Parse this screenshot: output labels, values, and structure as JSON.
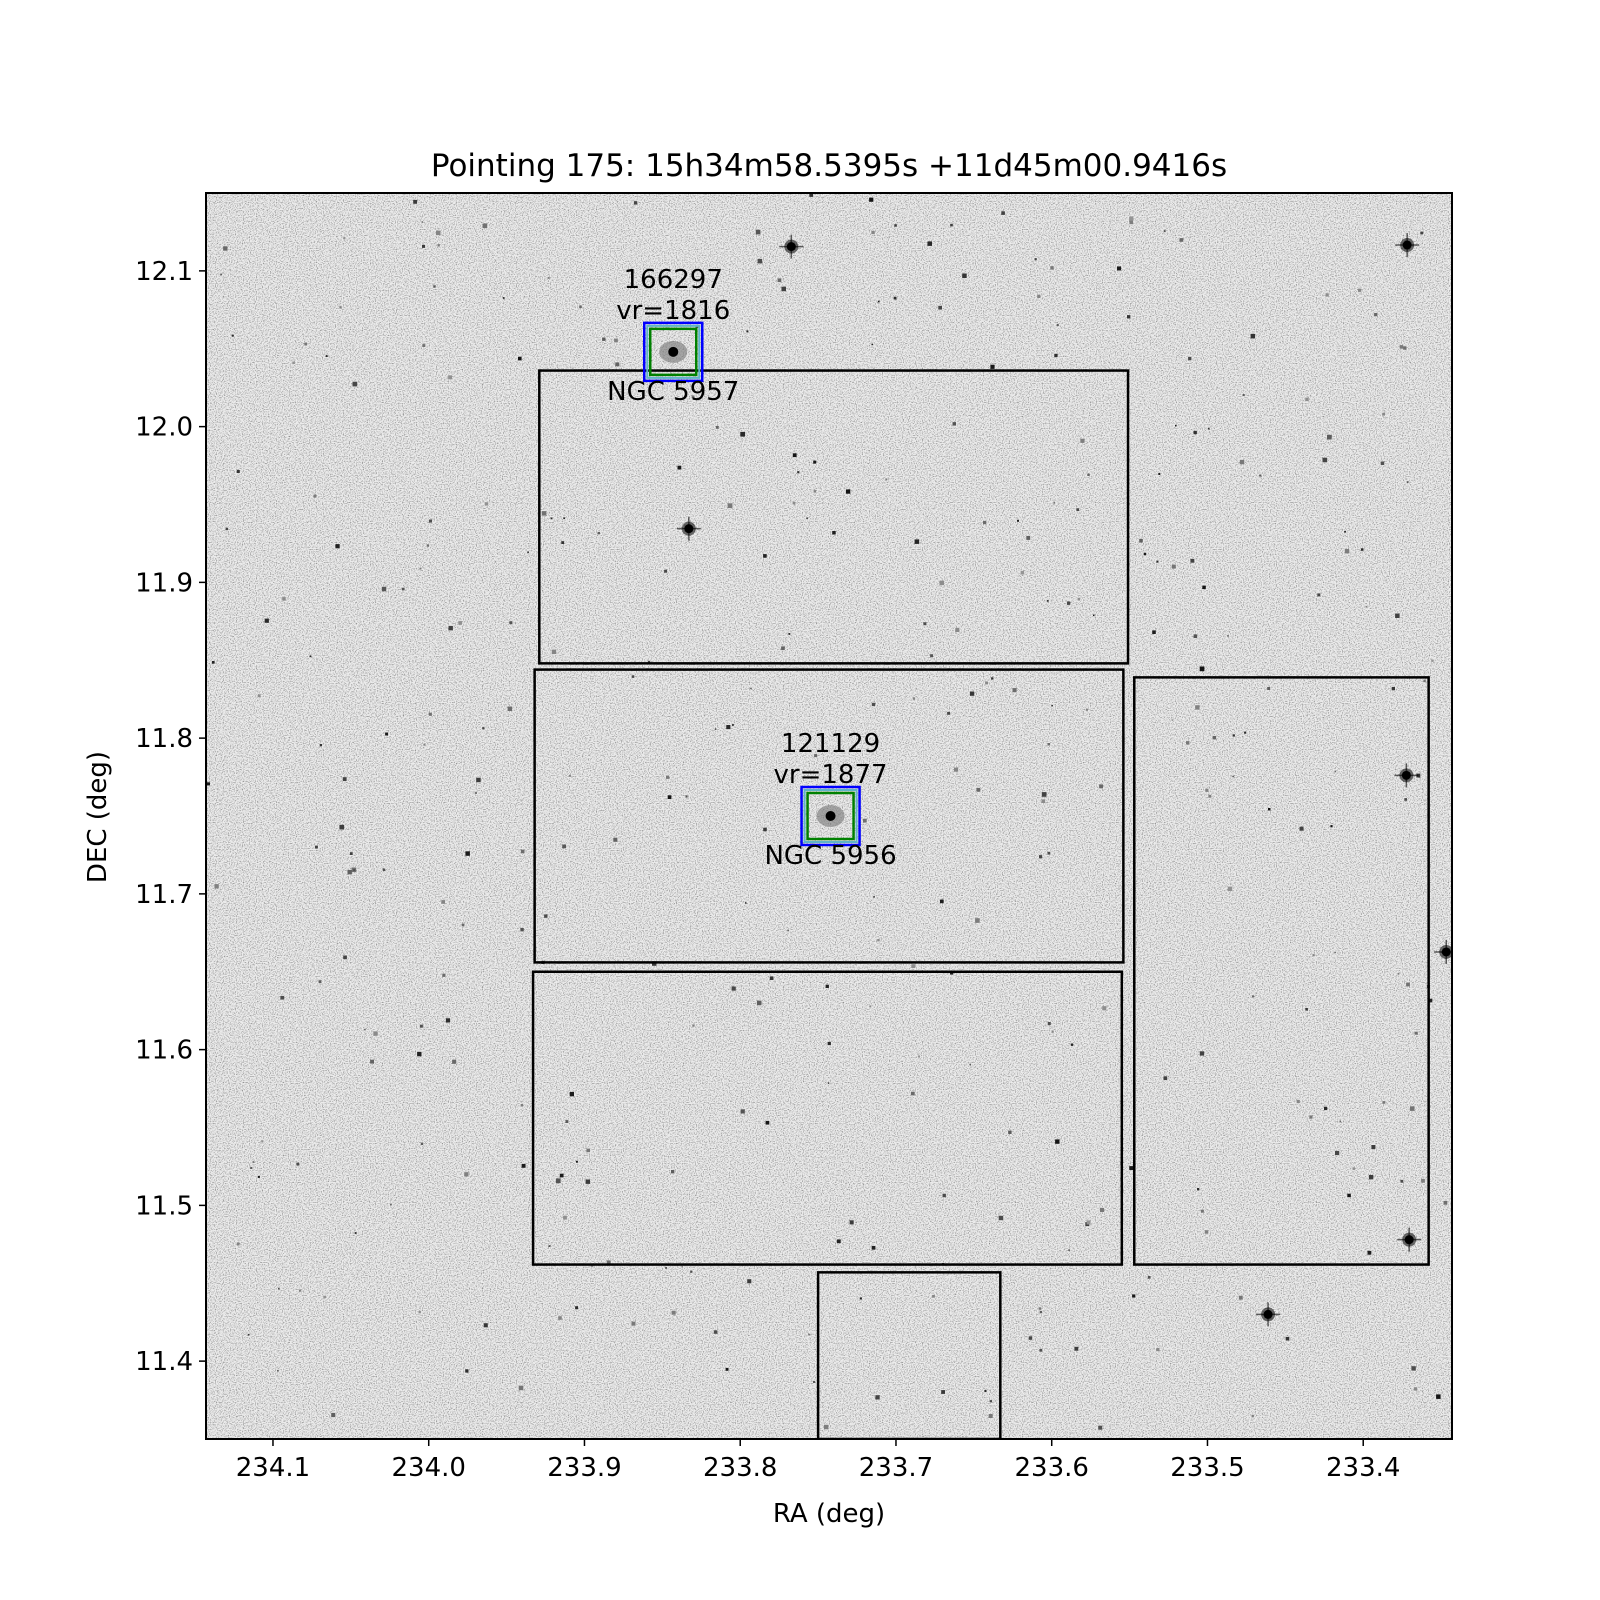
{
  "chart_data": {
    "type": "scatter",
    "title": "Pointing 175: 15h34m58.5395s +11d45m00.9416s",
    "xlabel": "RA (deg)",
    "ylabel": "DEC (deg)",
    "xlim": [
      234.143,
      233.343
    ],
    "ylim": [
      11.35,
      12.15
    ],
    "x_ticks": [
      234.1,
      234.0,
      233.9,
      233.8,
      233.7,
      233.6,
      233.5,
      233.4
    ],
    "x_tick_labels": [
      "234.1",
      "234.0",
      "233.9",
      "233.8",
      "233.7",
      "233.6",
      "233.5",
      "233.4"
    ],
    "y_ticks": [
      11.4,
      11.5,
      11.6,
      11.7,
      11.8,
      11.9,
      12.0,
      12.1
    ],
    "y_tick_labels": [
      "11.4",
      "11.5",
      "11.6",
      "11.7",
      "11.8",
      "11.9",
      "12.0",
      "12.1"
    ],
    "background": "grayscale sky image with stars",
    "footprints": [
      {
        "ra": [
          233.929,
          233.551
        ],
        "dec": [
          11.848,
          12.036
        ]
      },
      {
        "ra": [
          233.932,
          233.554
        ],
        "dec": [
          11.656,
          11.844
        ]
      },
      {
        "ra": [
          233.933,
          233.555
        ],
        "dec": [
          11.462,
          11.65
        ]
      },
      {
        "ra": [
          233.547,
          233.358
        ],
        "dec": [
          11.462,
          11.839
        ]
      },
      {
        "ra": [
          233.75,
          233.633
        ],
        "dec": [
          11.35,
          11.457
        ]
      }
    ],
    "galaxies": [
      {
        "id": "166297",
        "vr": "vr=1816",
        "name": "NGC 5957",
        "ra": 233.843,
        "dec": 12.048
      },
      {
        "id": "121129",
        "vr": "vr=1877",
        "name": "NGC 5956",
        "ra": 233.742,
        "dec": 11.75
      }
    ],
    "bright_stars": [
      {
        "ra": 233.3718,
        "dec": 12.1166
      },
      {
        "ra": 233.3723,
        "dec": 11.7761
      },
      {
        "ra": 233.4611,
        "dec": 11.43
      },
      {
        "ra": 233.3467,
        "dec": 11.6627
      },
      {
        "ra": 233.3705,
        "dec": 11.478
      },
      {
        "ra": 233.7672,
        "dec": 12.1156
      },
      {
        "ra": 233.833,
        "dec": 11.9345
      }
    ],
    "colors": {
      "footprint": "#000000",
      "box_outer": "#0000ff",
      "box_inner": "#008000",
      "box_mid": "#5fb4c8"
    },
    "grid": false
  }
}
